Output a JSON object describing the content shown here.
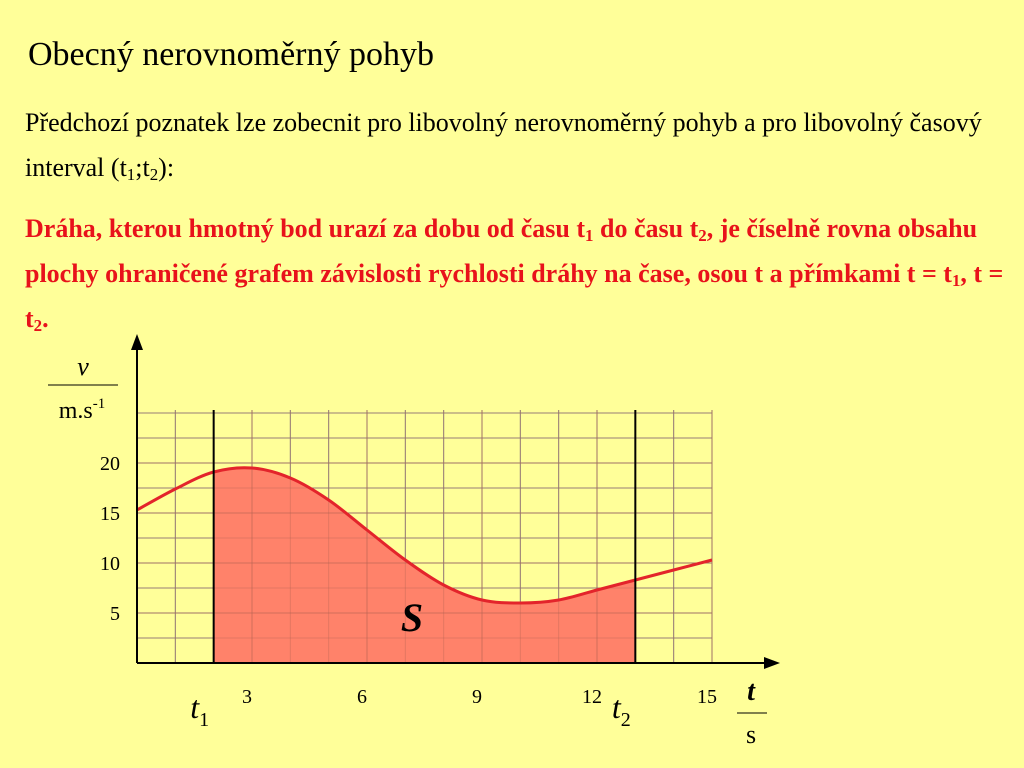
{
  "slide": {
    "title": "Obecný nerovnoměrný pohyb",
    "intro": [
      "Předchozí poznatek lze zobecnit pro libovolný nerovnoměrný pohyb a pro libovolný časový interval (t",
      "1",
      ";t",
      "2",
      "):"
    ],
    "statement": [
      "Dráha, kterou hmotný bod urazí za dobu od času t",
      "1",
      " do času t",
      "2",
      ", je číselně rovna obsahu plochy ohraničené grafem závislosti rychlosti dráhy na čase, osou t a přímkami t = t",
      "1",
      ", t = t",
      "2",
      "."
    ]
  },
  "chart_data": {
    "type": "line",
    "x": [
      0,
      1,
      2,
      3,
      4,
      5,
      6,
      7,
      8,
      9,
      10,
      11,
      12,
      13,
      14,
      15
    ],
    "values": [
      15.3,
      17.4,
      19.1,
      19.5,
      18.5,
      16.3,
      13.3,
      10.3,
      7.8,
      6.3,
      6.0,
      6.3,
      7.3,
      8.3,
      9.3,
      10.3
    ],
    "color": "#e3242b",
    "fill_color": "#ff826a",
    "xlim": [
      0,
      15
    ],
    "xticks": [
      3,
      6,
      9,
      12,
      15
    ],
    "ylim": [
      0,
      25
    ],
    "yticks": [
      5,
      10,
      15,
      20
    ],
    "grid": true,
    "bounds": [
      {
        "value": 2,
        "label": "t",
        "sub": "1"
      },
      {
        "value": 13,
        "label": "t",
        "sub": "2"
      }
    ],
    "area_label": "S",
    "y_label": {
      "symbol": "v",
      "unit": "m.s",
      "unit_sup": "-1"
    },
    "x_label": {
      "symbol": "t",
      "unit": "s"
    }
  }
}
